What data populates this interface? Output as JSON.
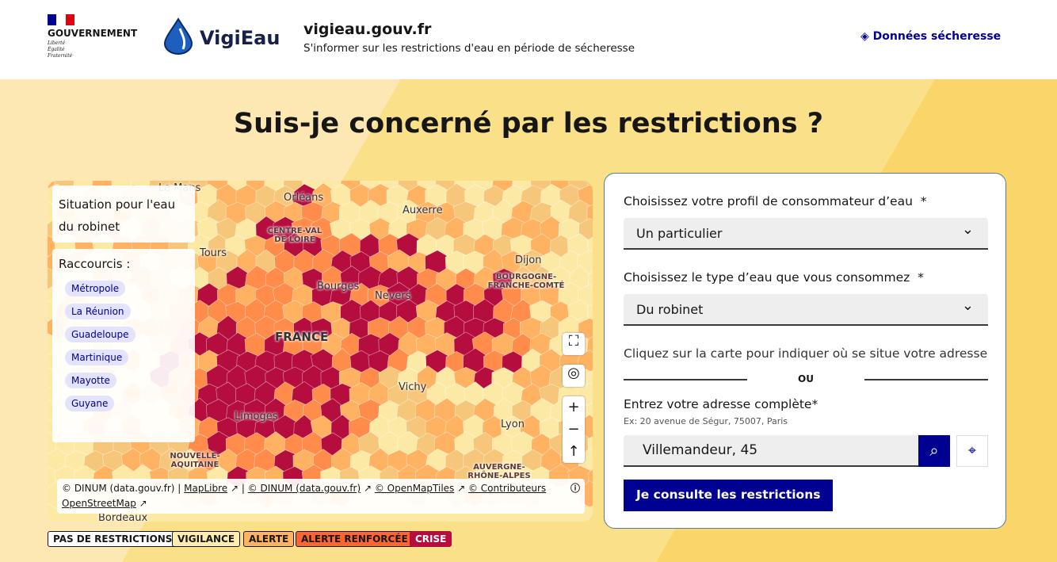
{
  "header": {
    "gov": "GOUVERNEMENT",
    "motto": [
      "Liberté",
      "Égalité",
      "Fraternité"
    ],
    "brand": "VigiEau",
    "site_title": "vigieau.gouv.fr",
    "site_subtitle": "S'informer sur les restrictions d'eau en période de sécheresse",
    "nav_link": "Données sécheresse"
  },
  "title": "Suis-je concerné par les restrictions ?",
  "map": {
    "info_title": "Situation pour l'eau du robinet",
    "shortcuts_title": "Raccourcis :",
    "shortcuts": [
      "Métropole",
      "La Réunion",
      "Guadeloupe",
      "Martinique",
      "Mayotte",
      "Guyane"
    ],
    "labels": [
      "Le Mans",
      "Orléans",
      "Auxerre",
      "Tours",
      "CENTRE-VAL DE LOIRE",
      "Dijon",
      "BOURGOGNE-FRANCHE-COMTÉ",
      "Bourges",
      "Nevers",
      "FRANCE",
      "Vichy",
      "Limoges",
      "Lyon",
      "NOUVELLE-AQUITAINE",
      "AUVERGNE-RHÔNE-ALPES",
      "Bordeaux"
    ],
    "attribution": [
      "© DINUM (data.gouv.fr) |",
      "MapLibre",
      "|",
      "© DINUM (data.gouv.fr)",
      "© OpenMapTiles",
      "© Contributeurs OpenStreetMap"
    ]
  },
  "legend": [
    "PAS DE RESTRICTIONS",
    "VIGILANCE",
    "ALERTE",
    "ALERTE RENFORCÉE",
    "CRISE"
  ],
  "form": {
    "profile_label": "Choisissez votre profil de consommateur d’eau",
    "profile_value": "Un particulier",
    "water_label": "Choisissez le type d’eau que vous consommez",
    "water_value": "Du robinet",
    "required": "*",
    "map_hint": "Cliquez sur la carte pour indiquer où se situe votre adresse",
    "or": "OU",
    "address_label": "Entrez votre adresse complète",
    "address_hint": "Ex: 20 avenue de Ségur, 75007, Paris",
    "address_value": "Villemandeur, 45",
    "submit": "Je consulte les restrictions"
  }
}
